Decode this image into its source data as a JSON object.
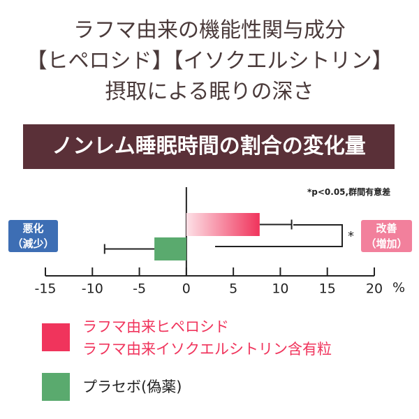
{
  "chart_data": {
    "type": "bar",
    "orientation": "horizontal",
    "title": "ラフマ由来の機能性関与成分\n【ヒペロシド】【イソクエルシトリン】\n摂取による眠りの深さ",
    "subtitle": "ノンレム睡眠時間の割合の変化量",
    "annotation": "*p<0.05,群間有意差",
    "significance": "*",
    "left_label": "悪化\n（減少）",
    "right_label": "改善\n（増加）",
    "axis_unit": "%",
    "xlim": [
      -15,
      20
    ],
    "xticks": [
      -15,
      -10,
      -5,
      0,
      5,
      10,
      15,
      20
    ],
    "series": [
      {
        "name": "ラフマ由来ヒペロシド\nラフマ由来イソクエルシトリン含有粒",
        "color": "#f0345c",
        "values": [
          7.8
        ],
        "errors": [
          3.4
        ]
      },
      {
        "name": "プラセボ(偽薬)",
        "color": "#5aaa6e",
        "values": [
          -3.4
        ],
        "errors": [
          5.3
        ]
      }
    ]
  }
}
